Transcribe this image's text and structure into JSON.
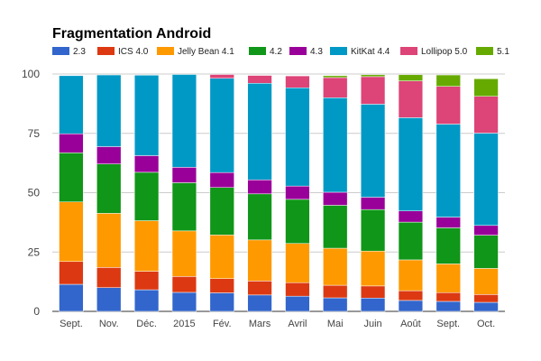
{
  "chart_data": {
    "type": "bar",
    "stacked": true,
    "title": "Fragmentation Android",
    "xlabel": "",
    "ylabel": "",
    "ylim": [
      0,
      100
    ],
    "yticks": [
      0,
      25,
      50,
      75,
      100
    ],
    "grid": true,
    "legend_position": "top",
    "categories": [
      "Sept.",
      "Nov.",
      "Déc.",
      "2015",
      "Fév.",
      "Mars",
      "Avril",
      "Mai",
      "Juin",
      "Août",
      "Sept.",
      "Oct."
    ],
    "series": [
      {
        "name": "2.3",
        "color": "#3366cc",
        "values": [
          11.4,
          10.0,
          9.1,
          8.0,
          7.8,
          6.9,
          6.4,
          5.7,
          5.6,
          4.6,
          4.2,
          3.8
        ]
      },
      {
        "name": "ICS 4.0",
        "color": "#dc3912",
        "values": [
          9.6,
          8.5,
          7.8,
          6.7,
          6.0,
          5.9,
          5.7,
          5.3,
          5.1,
          4.1,
          3.7,
          3.3
        ]
      },
      {
        "name": "Jelly Bean 4.1",
        "color": "#ff9900",
        "values": [
          25.1,
          22.8,
          21.3,
          19.2,
          18.4,
          17.3,
          16.5,
          15.6,
          14.7,
          13.0,
          12.1,
          11.0
        ]
      },
      {
        "name": "4.2",
        "color": "#109618",
        "values": [
          20.7,
          20.8,
          20.4,
          20.3,
          20.0,
          19.4,
          18.6,
          18.1,
          17.5,
          15.9,
          15.2,
          14.0
        ]
      },
      {
        "name": "4.3",
        "color": "#990099",
        "values": [
          8.0,
          7.3,
          7.0,
          6.5,
          6.3,
          5.9,
          5.6,
          5.5,
          5.2,
          4.7,
          4.5,
          4.1
        ]
      },
      {
        "name": "KitKat 4.4",
        "color": "#0099c6",
        "values": [
          24.5,
          30.2,
          33.9,
          39.1,
          39.7,
          40.7,
          41.4,
          39.8,
          39.2,
          39.3,
          39.2,
          38.9
        ]
      },
      {
        "name": "Lollipop 5.0",
        "color": "#dd4477",
        "values": [
          0,
          0,
          0,
          0,
          1.6,
          3.3,
          5.0,
          8.5,
          11.6,
          15.5,
          15.9,
          15.5
        ]
      },
      {
        "name": "5.1",
        "color": "#66aa00",
        "values": [
          0,
          0,
          0,
          0,
          0,
          0,
          0,
          0.8,
          0.8,
          2.6,
          4.8,
          7.4
        ]
      }
    ]
  }
}
